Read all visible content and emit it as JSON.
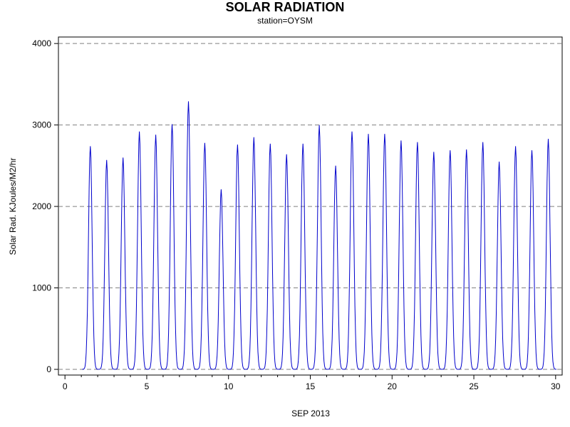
{
  "chart_data": {
    "type": "line",
    "title": "SOLAR RADIATION",
    "subtitle": "station=OYSM",
    "xlabel": "SEP 2013",
    "ylabel": "Solar Rad. KJoules/M2/hr",
    "xlim": [
      -0.4,
      30.4
    ],
    "ylim": [
      -70,
      4080
    ],
    "x_ticks": [
      0,
      5,
      10,
      15,
      20,
      25,
      30
    ],
    "y_ticks": [
      0,
      1000,
      2000,
      3000,
      4000
    ],
    "grid": "horizontal dashed at y ticks",
    "line_color": "#0000cc",
    "series": [
      {
        "daily_peaks": [
          {
            "day": 1,
            "peak": 2740
          },
          {
            "day": 2,
            "peak": 2570
          },
          {
            "day": 3,
            "peak": 2600
          },
          {
            "day": 4,
            "peak": 2920
          },
          {
            "day": 5,
            "peak": 2880
          },
          {
            "day": 6,
            "peak": 3010
          },
          {
            "day": 7,
            "peak": 3290
          },
          {
            "day": 8,
            "peak": 2780
          },
          {
            "day": 9,
            "peak": 2210
          },
          {
            "day": 10,
            "peak": 2760
          },
          {
            "day": 11,
            "peak": 2850
          },
          {
            "day": 12,
            "peak": 2770
          },
          {
            "day": 13,
            "peak": 2640
          },
          {
            "day": 14,
            "peak": 2770
          },
          {
            "day": 15,
            "peak": 3000
          },
          {
            "day": 16,
            "peak": 2500
          },
          {
            "day": 17,
            "peak": 2920
          },
          {
            "day": 18,
            "peak": 2890
          },
          {
            "day": 19,
            "peak": 2890
          },
          {
            "day": 20,
            "peak": 2810
          },
          {
            "day": 21,
            "peak": 2790
          },
          {
            "day": 22,
            "peak": 2670
          },
          {
            "day": 23,
            "peak": 2690
          },
          {
            "day": 24,
            "peak": 2700
          },
          {
            "day": 25,
            "peak": 2790
          },
          {
            "day": 26,
            "peak": 2550
          },
          {
            "day": 27,
            "peak": 2740
          },
          {
            "day": 28,
            "peak": 2690
          },
          {
            "day": 29,
            "peak": 2830
          }
        ]
      }
    ]
  }
}
